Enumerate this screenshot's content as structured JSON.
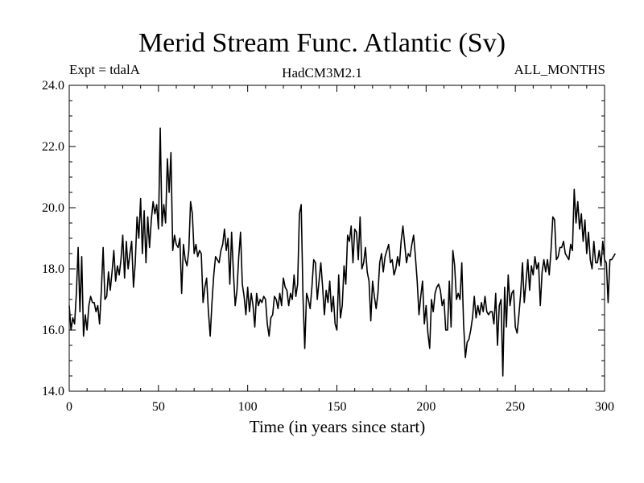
{
  "chart_data": {
    "type": "line",
    "title": "Merid Stream Func. Atlantic (Sv)",
    "subtitle_left": "Expt = tdalA",
    "subtitle_center": "HadCM3M2.1",
    "subtitle_right": "ALL_MONTHS",
    "xlabel": "Time (in years since start)",
    "ylabel": "",
    "xlim": [
      0,
      300
    ],
    "ylim": [
      14.0,
      24.0
    ],
    "x_ticks": [
      0,
      50,
      100,
      150,
      200,
      250,
      300
    ],
    "x_tick_labels": [
      "0",
      "50",
      "100",
      "150",
      "200",
      "250",
      "300"
    ],
    "y_ticks": [
      14,
      16,
      18,
      20,
      22,
      24
    ],
    "y_tick_labels": [
      "14.0",
      "16.0",
      "18.0",
      "20.0",
      "22.0",
      "24.0"
    ],
    "grid": false,
    "series": [
      {
        "name": "Merid Stream Func. Atlantic",
        "x_start": 0,
        "x_step": 1,
        "values": [
          16.8,
          16.0,
          16.4,
          16.2,
          17.2,
          18.7,
          16.6,
          18.4,
          15.8,
          16.5,
          16.0,
          16.8,
          17.1,
          16.9,
          16.9,
          16.6,
          16.8,
          16.2,
          17.3,
          18.7,
          17.0,
          17.1,
          17.9,
          17.3,
          17.9,
          18.6,
          17.6,
          18.1,
          17.8,
          18.3,
          19.1,
          17.7,
          18.9,
          18.0,
          18.5,
          18.9,
          17.4,
          18.2,
          19.7,
          19.0,
          20.3,
          18.5,
          19.9,
          18.2,
          19.7,
          18.7,
          19.6,
          20.2,
          19.8,
          20.1,
          19.3,
          22.6,
          19.4,
          20.1,
          19.5,
          21.6,
          20.5,
          21.8,
          18.6,
          19.1,
          18.8,
          18.7,
          19.0,
          17.2,
          18.8,
          18.3,
          18.1,
          18.6,
          20.2,
          19.8,
          18.5,
          18.8,
          18.4,
          18.6,
          18.5,
          16.9,
          17.4,
          17.7,
          16.6,
          15.8,
          16.9,
          17.8,
          18.4,
          18.3,
          18.2,
          18.6,
          18.8,
          19.3,
          18.6,
          19.0,
          17.5,
          19.2,
          17.9,
          16.8,
          17.3,
          18.4,
          19.2,
          17.5,
          17.1,
          16.5,
          17.4,
          16.6,
          17.2,
          16.8,
          16.1,
          17.2,
          16.8,
          17.0,
          16.9,
          17.1,
          17.0,
          16.2,
          15.8,
          16.4,
          16.5,
          17.1,
          17.0,
          16.7,
          17.2,
          16.8,
          17.7,
          17.4,
          17.3,
          16.8,
          17.2,
          17.0,
          17.8,
          17.1,
          17.5,
          19.8,
          20.1,
          17.1,
          15.4,
          17.2,
          17.0,
          16.7,
          17.4,
          18.3,
          18.2,
          17.0,
          17.6,
          18.2,
          17.4,
          16.5,
          17.3,
          16.9,
          17.6,
          16.6,
          17.1,
          16.2,
          16.0,
          17.8,
          16.4,
          16.8,
          18.1,
          17.5,
          19.1,
          18.9,
          19.4,
          18.2,
          19.3,
          19.2,
          18.3,
          19.7,
          18.0,
          18.2,
          18.7,
          17.9,
          17.6,
          16.3,
          17.6,
          17.1,
          16.7,
          17.2,
          18.2,
          18.5,
          17.9,
          18.4,
          18.6,
          18.8,
          18.2,
          18.3,
          17.8,
          18.0,
          18.4,
          18.1,
          18.9,
          19.4,
          18.8,
          18.2,
          18.5,
          18.4,
          18.8,
          19.1,
          18.4,
          17.6,
          16.5,
          17.1,
          17.6,
          16.2,
          16.8,
          15.9,
          15.4,
          17.0,
          16.6,
          17.2,
          17.4,
          17.5,
          17.3,
          16.8,
          17.0,
          16.0,
          16.0,
          17.6,
          16.1,
          18.6,
          18.1,
          17.0,
          17.2,
          17.0,
          18.2,
          16.2,
          15.1,
          15.6,
          15.7,
          16.0,
          16.4,
          17.1,
          16.4,
          16.8,
          16.5,
          16.9,
          16.6,
          17.1,
          16.6,
          16.5,
          16.6,
          16.6,
          16.2,
          17.2,
          15.5,
          16.8,
          17.0,
          14.5,
          17.4,
          16.1,
          17.8,
          16.8,
          17.2,
          17.3,
          16.1,
          15.9,
          16.5,
          17.2,
          18.2,
          16.9,
          17.6,
          18.3,
          17.3,
          18.1,
          17.8,
          18.4,
          18.0,
          18.2,
          16.8,
          17.9,
          18.3,
          17.9,
          18.3,
          17.8,
          18.6,
          19.7,
          19.6,
          18.3,
          18.4,
          18.7,
          18.7,
          18.9,
          18.5,
          18.4,
          18.3,
          18.8,
          18.6,
          20.6,
          19.5,
          20.2,
          19.3,
          19.8,
          18.9,
          19.6,
          18.5,
          19.2,
          18.3,
          18.0,
          18.9,
          18.2,
          18.2,
          18.6,
          18.1,
          18.9,
          18.3,
          18.2,
          16.9,
          18.3,
          18.3,
          18.4,
          18.5
        ]
      }
    ]
  }
}
